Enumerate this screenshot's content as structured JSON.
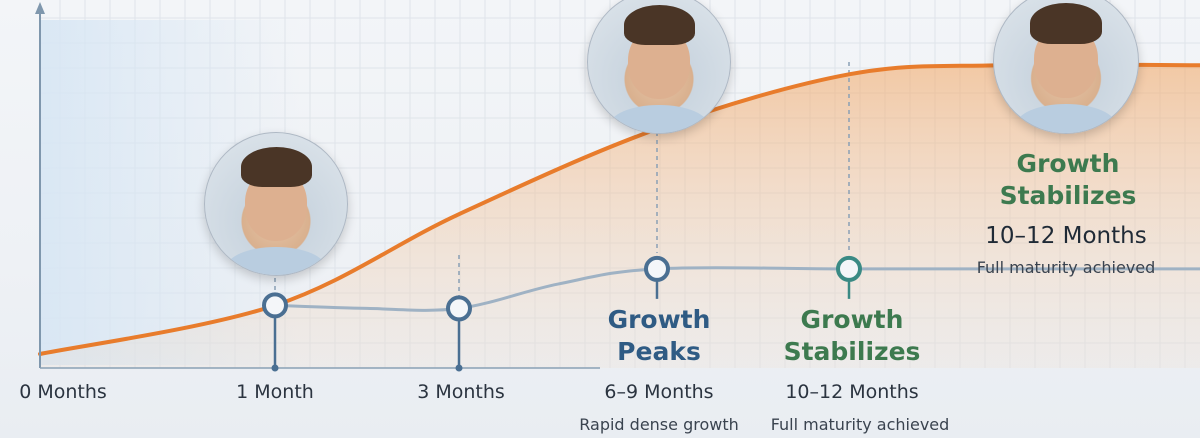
{
  "chart_data": {
    "type": "line",
    "title": "",
    "xlabel": "",
    "ylabel": "",
    "grid": true,
    "legend": "none",
    "categories": [
      "0 Months",
      "1 Month",
      "3 Months",
      "6–9 Months",
      "10–12 Months"
    ],
    "series": [
      {
        "color": "#e87c2c",
        "x": [
          0,
          1,
          2,
          3,
          4,
          5
        ],
        "y": [
          0,
          0.16,
          0.46,
          0.74,
          0.92,
          0.95
        ]
      },
      {
        "color": "#9fb2c4",
        "x": [
          1,
          1.5,
          2,
          2.5,
          3,
          4,
          5
        ],
        "y": [
          0.16,
          0.15,
          0.15,
          0.23,
          0.28,
          0.28,
          0.28
        ]
      }
    ],
    "markers": [
      {
        "x": 1,
        "y": 0.16,
        "color": "#4a6f92"
      },
      {
        "x": 2,
        "y": 0.15,
        "color": "#4a6f92"
      },
      {
        "x": 3,
        "y": 0.28,
        "color": "#4a6f92"
      },
      {
        "x": 4,
        "y": 0.28,
        "color": "#3a8a84"
      }
    ],
    "stages": [
      {
        "x": 3,
        "title": [
          "Growth",
          "Peaks"
        ],
        "subtitle": "Rapid dense growth",
        "color": "#2f5b84"
      },
      {
        "x": 4,
        "title": [
          "Growth",
          "Stabilizes"
        ],
        "subtitle": "Full maturity achieved",
        "color": "#3d7a4f"
      }
    ],
    "callout": {
      "title": [
        "Growth",
        "Stabilizes"
      ],
      "range": "10–12 Months",
      "subtitle": "Full maturity achieved",
      "color": "#3d7a4f"
    },
    "photos": [
      {
        "x": 1,
        "name": "photo-1-month"
      },
      {
        "x": 3,
        "name": "photo-6-9-months"
      },
      {
        "x": 5,
        "name": "photo-10-12-months"
      }
    ]
  }
}
